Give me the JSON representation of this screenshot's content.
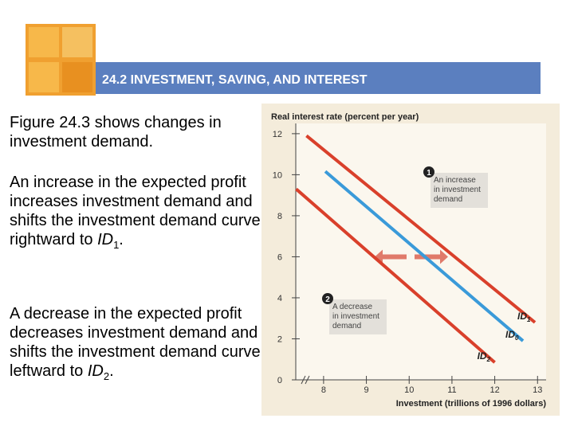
{
  "header": {
    "title": "24.2 INVESTMENT, SAVING, AND INTEREST"
  },
  "paragraphs": [
    {
      "text": "Figure 24.3 shows changes in investment demand."
    },
    {
      "text": "An increase in the expected profit increases investment demand and shifts the investment demand curve rightward to ",
      "italic": "ID",
      "sub": "1",
      "end": "."
    },
    {
      "text": "A decrease in the expected profit decreases investment demand and shifts the investment demand curve leftward to ",
      "italic": "ID",
      "sub": "2",
      "end": "."
    }
  ],
  "chart_data": {
    "type": "line",
    "ylabel": "Real interest rate (percent per year)",
    "xlabel": "Investment (trillions of 1996 dollars)",
    "xlim": [
      7.35,
      13.2
    ],
    "xticks": [
      8,
      9,
      10,
      11,
      12,
      13
    ],
    "ylim": [
      0,
      12.5
    ],
    "yticks": [
      0,
      2,
      4,
      6,
      8,
      10,
      12
    ],
    "series": [
      {
        "name": "ID1",
        "color": "#d9402b",
        "x": [
          7.6,
          12.94
        ],
        "values": [
          11.9,
          2.8
        ]
      },
      {
        "name": "ID0",
        "color": "#3a9ad9",
        "x": [
          8.04,
          12.66
        ],
        "values": [
          10.16,
          1.9
        ]
      },
      {
        "name": "ID2",
        "color": "#d9402b",
        "x": [
          7.36,
          12.0
        ],
        "values": [
          9.3,
          0.85
        ]
      }
    ],
    "annotations": [
      {
        "marker": "1",
        "lines": [
          "An increase",
          "in investment",
          "demand"
        ]
      },
      {
        "marker": "2",
        "lines": [
          "A decrease",
          "in investment",
          "demand"
        ]
      }
    ]
  }
}
